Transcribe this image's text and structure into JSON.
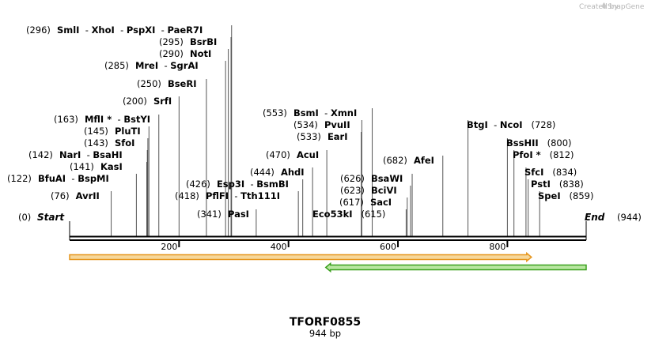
{
  "branding": {
    "text": "Created by",
    "logo_text": "SnapGene"
  },
  "map": {
    "name": "TFORF0855",
    "length_label": "944 bp",
    "total_bp": 944,
    "start_label": "Start",
    "start_pos": "(0)",
    "end_label": "End",
    "end_pos": "(944)",
    "ticks": [
      {
        "value": 200,
        "label": "200"
      },
      {
        "value": 400,
        "label": "400"
      },
      {
        "value": 600,
        "label": "600"
      },
      {
        "value": 800,
        "label": "800"
      }
    ],
    "sites": [
      {
        "pos": 76,
        "pos_label": "(76)",
        "names": [
          "AvrII"
        ],
        "side": "left"
      },
      {
        "pos": 122,
        "pos_label": "(122)",
        "names": [
          "BfuAI",
          "BspMI"
        ],
        "side": "left"
      },
      {
        "pos": 141,
        "pos_label": "(141)",
        "names": [
          "KasI"
        ],
        "side": "left"
      },
      {
        "pos": 142,
        "pos_label": "(142)",
        "names": [
          "NarI",
          "BsaHI"
        ],
        "side": "left"
      },
      {
        "pos": 143,
        "pos_label": "(143)",
        "names": [
          "SfoI"
        ],
        "side": "left"
      },
      {
        "pos": 145,
        "pos_label": "(145)",
        "names": [
          "PluTI"
        ],
        "side": "left"
      },
      {
        "pos": 163,
        "pos_label": "(163)",
        "names": [
          "MflI *",
          "BstYI"
        ],
        "side": "left"
      },
      {
        "pos": 200,
        "pos_label": "(200)",
        "names": [
          "SrfI"
        ],
        "side": "left"
      },
      {
        "pos": 250,
        "pos_label": "(250)",
        "names": [
          "BseRI"
        ],
        "side": "left"
      },
      {
        "pos": 285,
        "pos_label": "(285)",
        "names": [
          "MreI",
          "SgrAI"
        ],
        "side": "left"
      },
      {
        "pos": 290,
        "pos_label": "(290)",
        "names": [
          "NotI"
        ],
        "side": "left"
      },
      {
        "pos": 295,
        "pos_label": "(295)",
        "names": [
          "BsrBI"
        ],
        "side": "left"
      },
      {
        "pos": 296,
        "pos_label": "(296)",
        "names": [
          "SmlI",
          "XhoI",
          "PspXI",
          "PaeR7I"
        ],
        "side": "left"
      },
      {
        "pos": 341,
        "pos_label": "(341)",
        "names": [
          "PasI"
        ],
        "side": "left"
      },
      {
        "pos": 418,
        "pos_label": "(418)",
        "names": [
          "PflFI",
          "Tth111I"
        ],
        "side": "left"
      },
      {
        "pos": 426,
        "pos_label": "(426)",
        "names": [
          "Esp3I",
          "BsmBI"
        ],
        "side": "left"
      },
      {
        "pos": 444,
        "pos_label": "(444)",
        "names": [
          "AhdI"
        ],
        "side": "left"
      },
      {
        "pos": 470,
        "pos_label": "(470)",
        "names": [
          "AcuI"
        ],
        "side": "left"
      },
      {
        "pos": 533,
        "pos_label": "(533)",
        "names": [
          "EarI"
        ],
        "side": "left"
      },
      {
        "pos": 534,
        "pos_label": "(534)",
        "names": [
          "PvuII"
        ],
        "side": "left"
      },
      {
        "pos": 553,
        "pos_label": "(553)",
        "names": [
          "BsmI",
          "XmnI"
        ],
        "side": "left"
      },
      {
        "pos": 615,
        "pos_label": "(615)",
        "names": [
          "Eco53kI"
        ],
        "side": "right"
      },
      {
        "pos": 617,
        "pos_label": "(617)",
        "names": [
          "SacI"
        ],
        "side": "left"
      },
      {
        "pos": 623,
        "pos_label": "(623)",
        "names": [
          "BciVI"
        ],
        "side": "left"
      },
      {
        "pos": 626,
        "pos_label": "(626)",
        "names": [
          "BsaWI"
        ],
        "side": "left"
      },
      {
        "pos": 682,
        "pos_label": "(682)",
        "names": [
          "AfeI"
        ],
        "side": "left"
      },
      {
        "pos": 728,
        "pos_label": "(728)",
        "names": [
          "BtgI",
          "NcoI"
        ],
        "side": "right"
      },
      {
        "pos": 800,
        "pos_label": "(800)",
        "names": [
          "BssHII"
        ],
        "side": "right"
      },
      {
        "pos": 812,
        "pos_label": "(812)",
        "names": [
          "PfoI *"
        ],
        "side": "right"
      },
      {
        "pos": 834,
        "pos_label": "(834)",
        "names": [
          "SfcI"
        ],
        "side": "right"
      },
      {
        "pos": 838,
        "pos_label": "(838)",
        "names": [
          "PstI"
        ],
        "side": "right"
      },
      {
        "pos": 859,
        "pos_label": "(859)",
        "names": [
          "SpeI"
        ],
        "side": "right"
      }
    ],
    "features": [
      {
        "name": "orange-feature",
        "from": 0,
        "to": 844,
        "strand": "forward",
        "color": "#e6961e",
        "fill": "#f6d79a"
      },
      {
        "name": "green-feature",
        "from": 468,
        "to": 944,
        "strand": "reverse",
        "color": "#3aa01e",
        "fill": "#b8e6a0"
      }
    ]
  }
}
